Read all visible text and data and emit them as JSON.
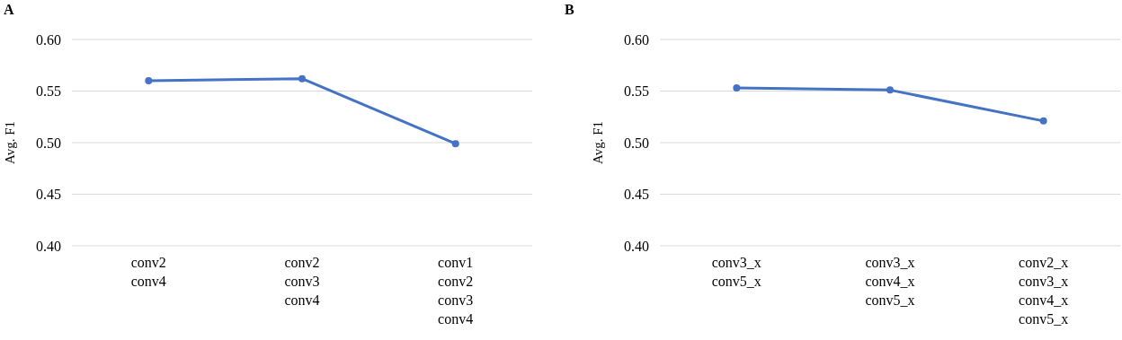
{
  "chart_data": [
    {
      "type": "line",
      "title": "A",
      "ylabel": "Avg. F1",
      "categories": [
        "conv2\nconv4",
        "conv2\nconv3\nconv4",
        "conv1\nconv2\nconv3\nconv4"
      ],
      "series": [
        {
          "color": "#4472c4",
          "values": [
            0.56,
            0.562,
            0.499
          ]
        }
      ],
      "ylim": [
        0.4,
        0.6
      ],
      "yticks": [
        {
          "value": 0.4,
          "label": "0.40"
        },
        {
          "value": 0.45,
          "label": "0.45"
        },
        {
          "value": 0.5,
          "label": "0.50"
        },
        {
          "value": 0.55,
          "label": "0.55"
        },
        {
          "value": 0.6,
          "label": "0.60"
        }
      ],
      "grid": "y",
      "marker": "circle"
    },
    {
      "type": "line",
      "title": "B",
      "ylabel": "Avg. F1",
      "categories": [
        "conv3_x\nconv5_x",
        "conv3_x\nconv4_x\nconv5_x",
        "conv2_x\nconv3_x\nconv4_x\nconv5_x"
      ],
      "series": [
        {
          "color": "#4472c4",
          "values": [
            0.553,
            0.551,
            0.521
          ]
        }
      ],
      "ylim": [
        0.4,
        0.6
      ],
      "yticks": [
        {
          "value": 0.4,
          "label": "0.40"
        },
        {
          "value": 0.45,
          "label": "0.45"
        },
        {
          "value": 0.5,
          "label": "0.50"
        },
        {
          "value": 0.55,
          "label": "0.55"
        },
        {
          "value": 0.6,
          "label": "0.60"
        }
      ],
      "grid": "y",
      "marker": "circle"
    }
  ]
}
